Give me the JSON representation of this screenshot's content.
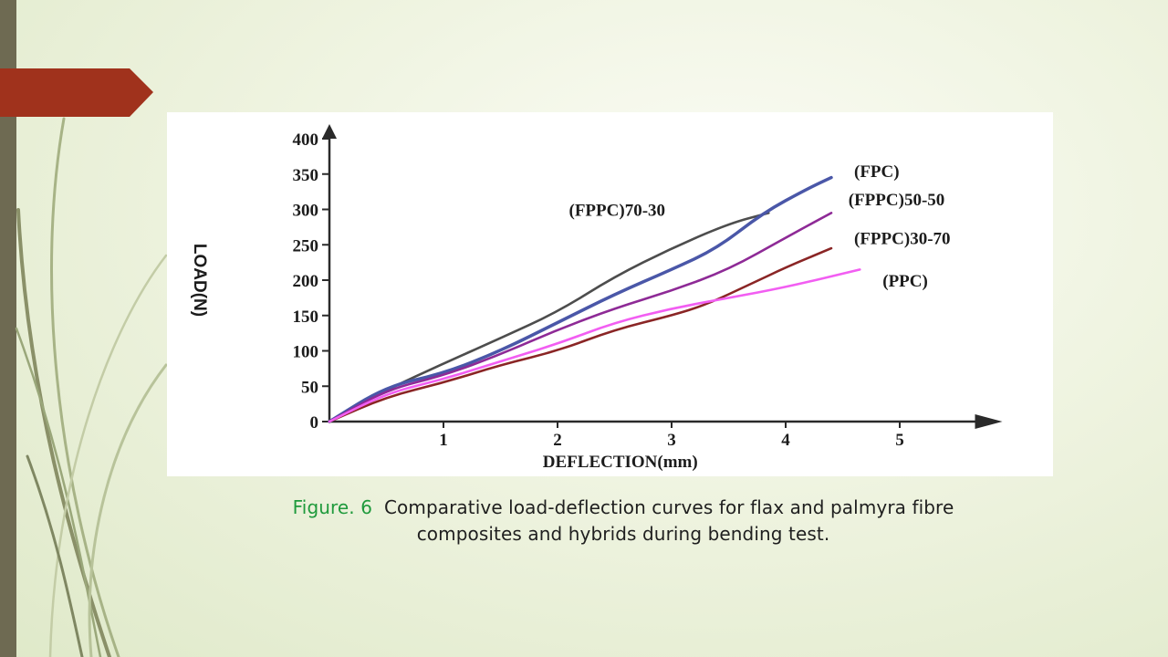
{
  "slide": {
    "caption_label": "Figure. 6",
    "caption_line1": "Comparative load-deflection curves for flax and palmyra fibre",
    "caption_line2": "composites and hybrids during bending  test.",
    "accent_color": "#a0321c",
    "sidebar_color": "#6e6a52",
    "label_color": "#1f9a3c"
  },
  "chart_data": {
    "type": "line",
    "xlabel": "DEFLECTION(mm)",
    "ylabel": "LOAD(N)",
    "xlim": [
      0,
      5.9
    ],
    "ylim": [
      0,
      400
    ],
    "x_ticks": [
      1,
      2,
      3,
      4,
      5
    ],
    "y_ticks": [
      0,
      50,
      100,
      150,
      200,
      250,
      300,
      350,
      400
    ],
    "grid": false,
    "series": [
      {
        "name": "(FPPC)70-30",
        "color": "#4d4d4d",
        "points": [
          [
            0,
            0
          ],
          [
            0.5,
            45
          ],
          [
            1,
            82
          ],
          [
            1.5,
            118
          ],
          [
            2,
            155
          ],
          [
            2.5,
            205
          ],
          [
            3,
            245
          ],
          [
            3.5,
            280
          ],
          [
            3.85,
            295
          ]
        ],
        "label_pos": [
          2.1,
          300
        ]
      },
      {
        "name": "(FPC)",
        "color": "#4a57a8",
        "points": [
          [
            0,
            0
          ],
          [
            0.5,
            50
          ],
          [
            1,
            68
          ],
          [
            1.5,
            100
          ],
          [
            2,
            140
          ],
          [
            2.5,
            180
          ],
          [
            3,
            215
          ],
          [
            3.4,
            245
          ],
          [
            3.8,
            295
          ],
          [
            4.2,
            330
          ],
          [
            4.4,
            345
          ]
        ],
        "label_pos": [
          4.6,
          355
        ]
      },
      {
        "name": "(FPPC)50-50",
        "color": "#8e2a96",
        "points": [
          [
            0,
            0
          ],
          [
            0.5,
            45
          ],
          [
            1,
            65
          ],
          [
            1.5,
            95
          ],
          [
            2,
            130
          ],
          [
            2.5,
            160
          ],
          [
            3,
            185
          ],
          [
            3.5,
            215
          ],
          [
            4,
            260
          ],
          [
            4.4,
            295
          ]
        ],
        "label_pos": [
          4.55,
          315
        ]
      },
      {
        "name": "(FPPC)30-70",
        "color": "#8a2525",
        "points": [
          [
            0,
            0
          ],
          [
            0.5,
            35
          ],
          [
            1,
            55
          ],
          [
            1.5,
            80
          ],
          [
            2,
            100
          ],
          [
            2.5,
            130
          ],
          [
            3,
            150
          ],
          [
            3.3,
            165
          ],
          [
            3.7,
            195
          ],
          [
            4,
            218
          ],
          [
            4.4,
            245
          ]
        ],
        "label_pos": [
          4.6,
          260
        ]
      },
      {
        "name": "(PPC)",
        "color": "#f25ef2",
        "points": [
          [
            0,
            0
          ],
          [
            0.5,
            40
          ],
          [
            1,
            60
          ],
          [
            1.5,
            85
          ],
          [
            2,
            110
          ],
          [
            2.5,
            140
          ],
          [
            3,
            160
          ],
          [
            3.5,
            175
          ],
          [
            4,
            190
          ],
          [
            4.65,
            215
          ]
        ],
        "label_pos": [
          4.85,
          200
        ]
      }
    ]
  }
}
